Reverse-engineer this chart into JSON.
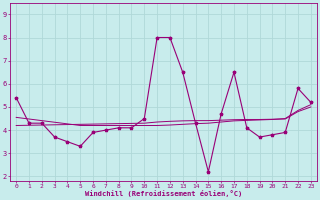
{
  "xlabel": "Windchill (Refroidissement éolien,°C)",
  "background_color": "#c8ecec",
  "grid_color": "#b0d8d8",
  "line_color": "#990077",
  "xlim_min": -0.5,
  "xlim_max": 23.5,
  "ylim_min": 1.8,
  "ylim_max": 9.5,
  "yticks": [
    2,
    3,
    4,
    5,
    6,
    7,
    8,
    9
  ],
  "xticks": [
    0,
    1,
    2,
    3,
    4,
    5,
    6,
    7,
    8,
    9,
    10,
    11,
    12,
    13,
    14,
    15,
    16,
    17,
    18,
    19,
    20,
    21,
    22,
    23
  ],
  "series_main": [
    5.4,
    4.3,
    4.3,
    3.7,
    3.5,
    3.3,
    3.9,
    4.0,
    4.1,
    4.1,
    4.5,
    8.0,
    8.0,
    6.5,
    4.3,
    2.2,
    4.7,
    6.5,
    4.1,
    3.7,
    3.8,
    3.9,
    5.8,
    5.2
  ],
  "trend1": [
    4.55,
    4.48,
    4.41,
    4.34,
    4.27,
    4.2,
    4.2,
    4.2,
    4.2,
    4.2,
    4.2,
    4.2,
    4.22,
    4.25,
    4.28,
    4.3,
    4.35,
    4.4,
    4.42,
    4.44,
    4.46,
    4.5,
    4.85,
    5.1
  ],
  "trend2": [
    4.2,
    4.21,
    4.22,
    4.23,
    4.24,
    4.25,
    4.26,
    4.27,
    4.28,
    4.29,
    4.3,
    4.35,
    4.38,
    4.4,
    4.41,
    4.41,
    4.43,
    4.45,
    4.46,
    4.46,
    4.47,
    4.48,
    4.8,
    5.0
  ],
  "figsize": [
    3.2,
    2.0
  ],
  "dpi": 100
}
